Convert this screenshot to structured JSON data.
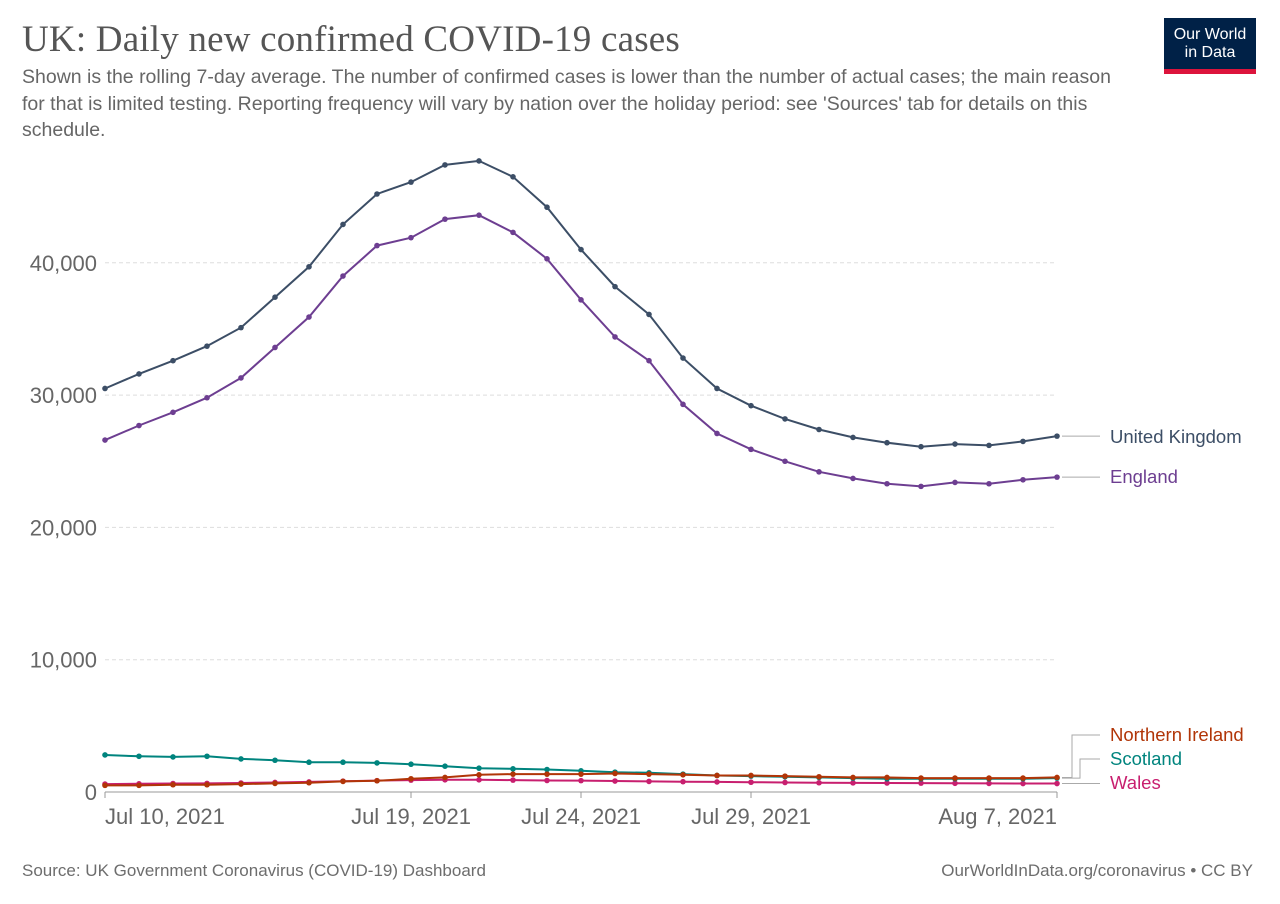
{
  "header": {
    "title": "UK: Daily new confirmed COVID-19 cases",
    "subtitle": "Shown is the rolling 7-day average. The number of confirmed cases is lower than the number of actual cases; the main reason for that is limited testing. Reporting frequency will vary by nation over the holiday period: see 'Sources' tab for details on this schedule."
  },
  "logo": {
    "line1": "Our World",
    "line2": "in Data",
    "bg_color": "#002147",
    "bar_color": "#dc143c"
  },
  "footer": {
    "source": "Source: UK Government Coronavirus (COVID-19) Dashboard",
    "credit": "OurWorldInData.org/coronavirus • CC BY"
  },
  "chart_data": {
    "type": "line",
    "title": "UK: Daily new confirmed COVID-19 cases",
    "xlabel": "",
    "ylabel": "",
    "x": [
      "2021-07-10",
      "2021-07-11",
      "2021-07-12",
      "2021-07-13",
      "2021-07-14",
      "2021-07-15",
      "2021-07-16",
      "2021-07-17",
      "2021-07-18",
      "2021-07-19",
      "2021-07-20",
      "2021-07-21",
      "2021-07-22",
      "2021-07-23",
      "2021-07-24",
      "2021-07-25",
      "2021-07-26",
      "2021-07-27",
      "2021-07-28",
      "2021-07-29",
      "2021-07-30",
      "2021-07-31",
      "2021-08-01",
      "2021-08-02",
      "2021-08-03",
      "2021-08-04",
      "2021-08-05",
      "2021-08-06",
      "2021-08-07"
    ],
    "x_ticks": [
      "Jul 10, 2021",
      "Jul 19, 2021",
      "Jul 24, 2021",
      "Jul 29, 2021",
      "Aug 7, 2021"
    ],
    "y_ticks": [
      "0",
      "10,000",
      "20,000",
      "30,000",
      "40,000"
    ],
    "ylim": [
      0,
      50000
    ],
    "grid": "horizontal dashed",
    "legend": "inline labels at right end of lines",
    "series": [
      {
        "name": "United Kingdom",
        "color": "#3c4e66",
        "values": [
          30500,
          31600,
          32600,
          33700,
          35100,
          37400,
          39700,
          42900,
          45200,
          46100,
          47400,
          47700,
          46500,
          44200,
          41000,
          38200,
          36100,
          32800,
          30500,
          29200,
          28200,
          27400,
          26800,
          26400,
          26100,
          26300,
          26200,
          26500,
          26900
        ]
      },
      {
        "name": "England",
        "color": "#6d3e91",
        "values": [
          26600,
          27700,
          28700,
          29800,
          31300,
          33600,
          35900,
          39000,
          41300,
          41900,
          43300,
          43600,
          42300,
          40300,
          37200,
          34400,
          32600,
          29300,
          27100,
          25900,
          25000,
          24200,
          23700,
          23300,
          23100,
          23400,
          23300,
          23600,
          23800
        ]
      },
      {
        "name": "Northern Ireland",
        "color": "#b13507",
        "values": [
          500,
          500,
          550,
          550,
          600,
          650,
          700,
          800,
          850,
          1000,
          1100,
          1300,
          1350,
          1350,
          1350,
          1400,
          1350,
          1300,
          1250,
          1250,
          1200,
          1150,
          1100,
          1100,
          1050,
          1050,
          1050,
          1050,
          1100
        ]
      },
      {
        "name": "Scotland",
        "color": "#00847e",
        "values": [
          2800,
          2700,
          2650,
          2700,
          2500,
          2400,
          2250,
          2250,
          2200,
          2100,
          1950,
          1800,
          1750,
          1700,
          1600,
          1500,
          1450,
          1350,
          1250,
          1200,
          1150,
          1100,
          1050,
          1000,
          1000,
          1000,
          1000,
          1000,
          1050
        ]
      },
      {
        "name": "Wales",
        "color": "#c81f6f",
        "values": [
          600,
          620,
          640,
          650,
          680,
          720,
          760,
          820,
          860,
          900,
          920,
          920,
          900,
          870,
          860,
          830,
          800,
          780,
          760,
          740,
          720,
          700,
          690,
          680,
          670,
          660,
          650,
          640,
          640
        ]
      }
    ]
  }
}
